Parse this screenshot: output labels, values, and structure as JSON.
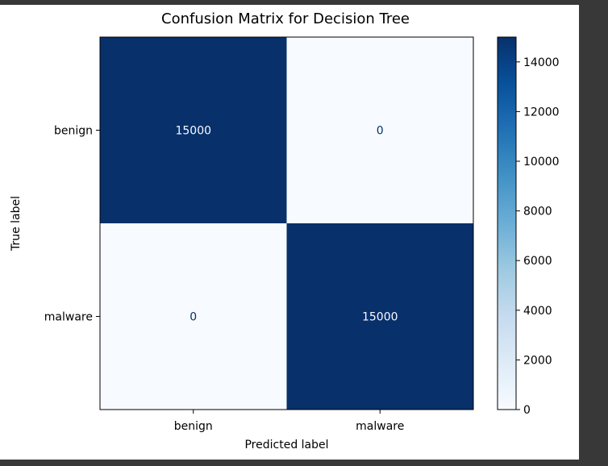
{
  "chart_data": {
    "type": "heatmap",
    "title": "Confusion Matrix for Decision Tree",
    "xlabel": "Predicted label",
    "ylabel": "True label",
    "x_categories": [
      "benign",
      "malware"
    ],
    "y_categories": [
      "benign",
      "malware"
    ],
    "matrix": [
      [
        15000,
        0
      ],
      [
        0,
        15000
      ]
    ],
    "cell_labels": [
      [
        "15000",
        "0"
      ],
      [
        "0",
        "15000"
      ]
    ],
    "colormap": "Blues",
    "color_low": "#f7fbff",
    "color_high": "#08306b",
    "colorbar": {
      "range": [
        0,
        15000
      ],
      "ticks": [
        0,
        2000,
        4000,
        6000,
        8000,
        10000,
        12000,
        14000
      ],
      "tick_labels": [
        "0",
        "2000",
        "4000",
        "6000",
        "8000",
        "10000",
        "12000",
        "14000"
      ]
    },
    "grid": false
  }
}
